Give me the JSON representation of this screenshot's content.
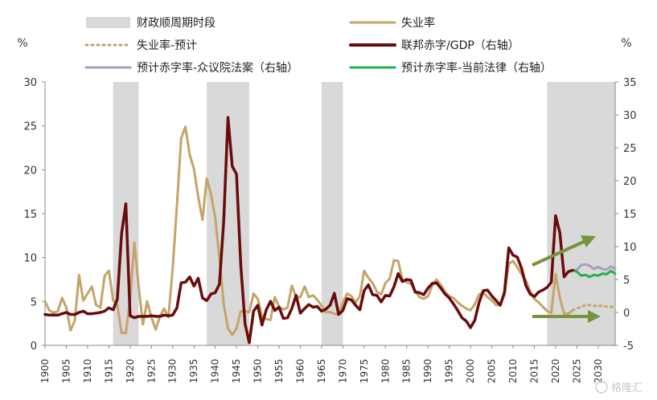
{
  "chart_data": {
    "type": "line",
    "left_axis": {
      "unit": "%",
      "range": [
        0,
        30
      ],
      "ticks": [
        0,
        5,
        10,
        15,
        20,
        25,
        30
      ]
    },
    "right_axis": {
      "unit": "%",
      "range": [
        -5,
        35
      ],
      "ticks": [
        -5,
        0,
        5,
        10,
        15,
        20,
        25,
        30,
        35
      ]
    },
    "x_axis": {
      "range": [
        1900,
        2034
      ],
      "ticks": [
        1900,
        1905,
        1910,
        1915,
        1920,
        1925,
        1930,
        1935,
        1940,
        1945,
        1950,
        1955,
        1960,
        1965,
        1970,
        1975,
        1980,
        1985,
        1990,
        1995,
        2000,
        2005,
        2010,
        2015,
        2020,
        2025,
        2030
      ]
    },
    "legend": [
      {
        "key": "fiscal",
        "label": "财政顺周期时段",
        "color": "#d9d9d9",
        "style": "band"
      },
      {
        "key": "unemp",
        "label": "失业率",
        "color": "#c4a46a",
        "style": "solid"
      },
      {
        "key": "unemp_f",
        "label": "失业率-预计",
        "color": "#c4a46a",
        "style": "dotted"
      },
      {
        "key": "deficit",
        "label": "联邦赤字/GDP（右轴）",
        "color": "#6b0b0b",
        "style": "solid"
      },
      {
        "key": "house",
        "label": "预计赤字率-众议院法案（右轴）",
        "color": "#a89cc8",
        "style": "solid"
      },
      {
        "key": "current",
        "label": "预计赤字率-当前法律（右轴）",
        "color": "#22b14c",
        "style": "solid"
      }
    ],
    "procyclical_periods": [
      [
        1916,
        1922
      ],
      [
        1938,
        1948
      ],
      [
        1965,
        1970
      ],
      [
        2018,
        2034
      ]
    ],
    "series": [
      {
        "name": "失业率",
        "axis": "left",
        "x": [
          1900,
          1901,
          1902,
          1903,
          1904,
          1905,
          1906,
          1907,
          1908,
          1909,
          1910,
          1911,
          1912,
          1913,
          1914,
          1915,
          1916,
          1917,
          1918,
          1919,
          1920,
          1921,
          1922,
          1923,
          1924,
          1925,
          1926,
          1927,
          1928,
          1929,
          1930,
          1931,
          1932,
          1933,
          1934,
          1935,
          1936,
          1937,
          1938,
          1939,
          1940,
          1941,
          1942,
          1943,
          1944,
          1945,
          1946,
          1947,
          1948,
          1949,
          1950,
          1951,
          1952,
          1953,
          1954,
          1955,
          1956,
          1957,
          1958,
          1959,
          1960,
          1961,
          1962,
          1963,
          1964,
          1965,
          1966,
          1967,
          1968,
          1969,
          1970,
          1971,
          1972,
          1973,
          1974,
          1975,
          1976,
          1977,
          1978,
          1979,
          1980,
          1981,
          1982,
          1983,
          1984,
          1985,
          1986,
          1987,
          1988,
          1989,
          1990,
          1991,
          1992,
          1993,
          1994,
          1995,
          1996,
          1997,
          1998,
          1999,
          2000,
          2001,
          2002,
          2003,
          2004,
          2005,
          2006,
          2007,
          2008,
          2009,
          2010,
          2011,
          2012,
          2013,
          2014,
          2015,
          2016,
          2017,
          2018,
          2019,
          2020,
          2021,
          2022,
          2023,
          2024
        ],
        "values": [
          5.0,
          4.0,
          3.7,
          3.9,
          5.4,
          4.3,
          1.7,
          2.8,
          8.0,
          5.1,
          5.9,
          6.7,
          4.6,
          4.3,
          7.9,
          8.5,
          5.1,
          4.6,
          1.4,
          1.4,
          5.2,
          11.7,
          6.7,
          2.4,
          5.0,
          3.2,
          1.8,
          3.3,
          4.2,
          3.2,
          8.7,
          15.9,
          23.6,
          24.9,
          21.7,
          20.1,
          16.9,
          14.3,
          19.0,
          17.2,
          14.6,
          9.9,
          4.7,
          1.9,
          1.2,
          1.9,
          3.9,
          3.9,
          3.8,
          5.9,
          5.3,
          3.3,
          3.0,
          2.9,
          5.5,
          4.4,
          4.1,
          4.3,
          6.8,
          5.5,
          5.5,
          6.7,
          5.5,
          5.7,
          5.2,
          4.5,
          3.8,
          3.8,
          3.6,
          3.5,
          4.9,
          5.9,
          5.6,
          4.9,
          5.6,
          8.5,
          7.7,
          7.1,
          6.1,
          5.8,
          7.1,
          7.6,
          9.7,
          9.6,
          7.5,
          7.2,
          7.0,
          6.2,
          5.5,
          5.3,
          5.6,
          6.8,
          7.5,
          6.9,
          6.1,
          5.6,
          5.4,
          4.9,
          4.5,
          4.2,
          4.0,
          4.7,
          5.8,
          6.0,
          5.5,
          5.1,
          4.6,
          4.6,
          5.8,
          9.3,
          9.6,
          8.9,
          8.1,
          7.4,
          6.2,
          5.3,
          4.9,
          4.4,
          3.9,
          3.7,
          8.1,
          5.4,
          3.6,
          3.6,
          4.0
        ]
      },
      {
        "name": "失业率-预计",
        "axis": "left",
        "x": [
          2024,
          2025,
          2026,
          2027,
          2028,
          2029,
          2030,
          2031,
          2032,
          2033,
          2034
        ],
        "values": [
          4.0,
          4.2,
          4.4,
          4.6,
          4.6,
          4.5,
          4.5,
          4.5,
          4.4,
          4.4,
          4.3
        ]
      },
      {
        "name": "联邦赤字/GDP（右轴）",
        "axis": "right",
        "x": [
          1900,
          1901,
          1902,
          1903,
          1904,
          1905,
          1906,
          1907,
          1908,
          1909,
          1910,
          1911,
          1912,
          1913,
          1914,
          1915,
          1916,
          1917,
          1918,
          1919,
          1920,
          1921,
          1922,
          1923,
          1924,
          1925,
          1926,
          1927,
          1928,
          1929,
          1930,
          1931,
          1932,
          1933,
          1934,
          1935,
          1936,
          1937,
          1938,
          1939,
          1940,
          1941,
          1942,
          1943,
          1944,
          1945,
          1946,
          1947,
          1948,
          1949,
          1950,
          1951,
          1952,
          1953,
          1954,
          1955,
          1956,
          1957,
          1958,
          1959,
          1960,
          1961,
          1962,
          1963,
          1964,
          1965,
          1966,
          1967,
          1968,
          1969,
          1970,
          1971,
          1972,
          1973,
          1974,
          1975,
          1976,
          1977,
          1978,
          1979,
          1980,
          1981,
          1982,
          1983,
          1984,
          1985,
          1986,
          1987,
          1988,
          1989,
          1990,
          1991,
          1992,
          1993,
          1994,
          1995,
          1996,
          1997,
          1998,
          1999,
          2000,
          2001,
          2002,
          2003,
          2004,
          2005,
          2006,
          2007,
          2008,
          2009,
          2010,
          2011,
          2012,
          2013,
          2014,
          2015,
          2016,
          2017,
          2018,
          2019,
          2020,
          2021,
          2022,
          2023,
          2024
        ],
        "values": [
          -0.3,
          -0.4,
          -0.4,
          -0.4,
          -0.2,
          0.0,
          -0.3,
          -0.3,
          0.0,
          0.2,
          -0.2,
          -0.2,
          -0.1,
          0.0,
          0.2,
          0.7,
          0.4,
          2.0,
          12.0,
          16.5,
          -0.5,
          -0.8,
          -0.6,
          -0.6,
          -0.6,
          -0.5,
          -0.6,
          -0.6,
          -0.4,
          -0.5,
          -0.4,
          0.7,
          4.5,
          4.6,
          5.4,
          4.0,
          5.2,
          2.2,
          1.8,
          2.8,
          3.0,
          4.3,
          13.9,
          29.6,
          22.2,
          21.0,
          7.2,
          -1.7,
          -4.6,
          0.2,
          1.1,
          -1.9,
          0.4,
          1.7,
          0.3,
          0.8,
          -0.9,
          -0.8,
          0.6,
          2.6,
          -0.1,
          0.6,
          1.2,
          0.8,
          0.9,
          0.2,
          0.5,
          1.1,
          2.9,
          -0.3,
          0.3,
          2.1,
          1.9,
          1.1,
          0.4,
          3.3,
          4.2,
          2.7,
          2.6,
          1.6,
          2.6,
          2.5,
          3.9,
          5.9,
          4.7,
          5.0,
          4.9,
          3.1,
          3.0,
          2.7,
          3.7,
          4.4,
          4.5,
          3.7,
          2.8,
          2.2,
          1.3,
          0.3,
          -0.8,
          -1.3,
          -2.3,
          -1.2,
          1.5,
          3.3,
          3.4,
          2.5,
          1.8,
          1.1,
          3.1,
          9.8,
          8.7,
          8.4,
          6.7,
          4.1,
          2.8,
          2.4,
          3.1,
          3.4,
          3.8,
          4.6,
          14.7,
          12.1,
          5.4,
          6.2,
          6.4
        ]
      },
      {
        "name": "预计赤字率-众议院法案（右轴）",
        "axis": "right",
        "x": [
          2024,
          2025,
          2026,
          2027,
          2028,
          2029,
          2030,
          2031,
          2032,
          2033,
          2034
        ],
        "values": [
          6.4,
          6.5,
          7.2,
          7.3,
          7.1,
          6.6,
          6.9,
          6.6,
          6.5,
          7.0,
          6.6
        ]
      },
      {
        "name": "预计赤字率-当前法律（右轴）",
        "axis": "right",
        "x": [
          2024,
          2025,
          2026,
          2027,
          2028,
          2029,
          2030,
          2031,
          2032,
          2033,
          2034
        ],
        "values": [
          6.4,
          6.2,
          5.6,
          5.7,
          5.4,
          5.7,
          5.6,
          5.9,
          5.8,
          6.3,
          5.9
        ]
      }
    ]
  },
  "watermark": "格隆汇"
}
